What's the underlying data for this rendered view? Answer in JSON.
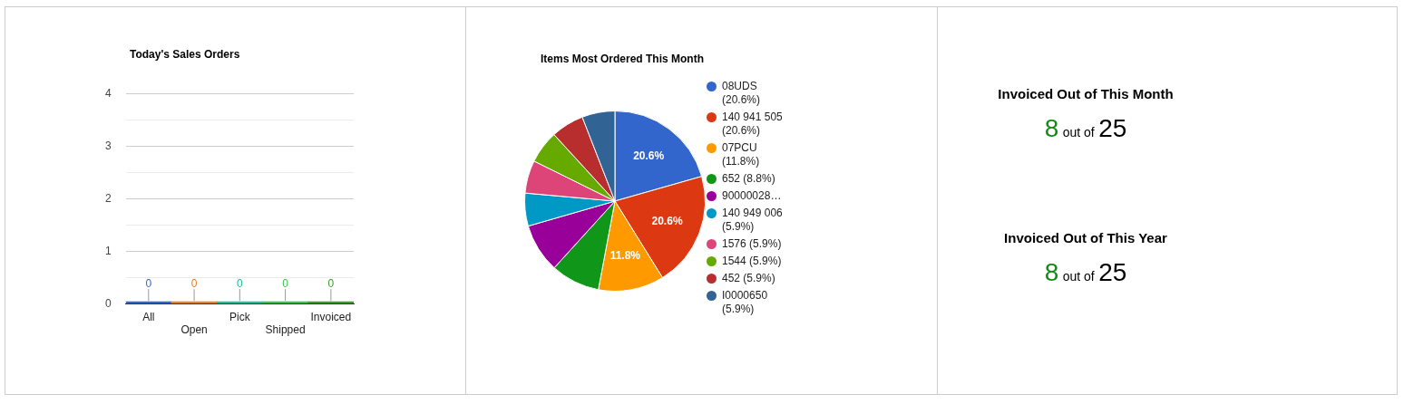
{
  "chart_data": [
    {
      "type": "bar",
      "title": "Today's Sales Orders",
      "categories": [
        "All",
        "Open",
        "Pick",
        "Shipped",
        "Invoiced"
      ],
      "values": [
        0,
        0,
        0,
        0,
        0
      ],
      "colors": [
        "#3366cc",
        "#e67e22",
        "#1fbf9a",
        "#33c14a",
        "#3c9a2a"
      ],
      "ylim": [
        0,
        4
      ],
      "yticks": [
        0,
        {
          "value": 0.5,
          "label": null
        },
        1,
        {
          "value": 1.5,
          "label": null
        },
        2,
        {
          "value": 2.5,
          "label": null
        },
        3,
        {
          "value": 3.5,
          "label": null
        },
        4
      ],
      "grid": "y",
      "data_labels": true
    },
    {
      "type": "pie",
      "title": "Items Most Ordered This Month",
      "categories": [
        "08UDS (20.6%)",
        "140 941 505 (20.6%)",
        "07PCU (11.8%)",
        "652 (8.8%)",
        "90000028…",
        "140 949 006 (5.9%)",
        "1576 (5.9%)",
        "1544 (5.9%)",
        "452 (5.9%)",
        "I0000650 (5.9%)"
      ],
      "values": [
        20.6,
        20.6,
        11.8,
        8.8,
        8.8,
        5.9,
        5.9,
        5.9,
        5.9,
        5.9
      ],
      "colors": [
        "#3366cc",
        "#dc3912",
        "#ff9900",
        "#109618",
        "#990099",
        "#0099c6",
        "#dd4477",
        "#66aa00",
        "#b82e2e",
        "#316395"
      ],
      "value_labels": [
        "20.6%",
        "20.6%",
        "11.8%",
        null,
        null,
        null,
        null,
        null,
        null,
        null
      ],
      "legend": "right"
    },
    {
      "type": "other",
      "title": "Invoiced Out of This Month",
      "annotations": [
        "8",
        "out of",
        "25"
      ]
    },
    {
      "type": "other",
      "title": "Invoiced Out of This Year",
      "annotations": [
        "8",
        "out of",
        "25"
      ]
    }
  ]
}
